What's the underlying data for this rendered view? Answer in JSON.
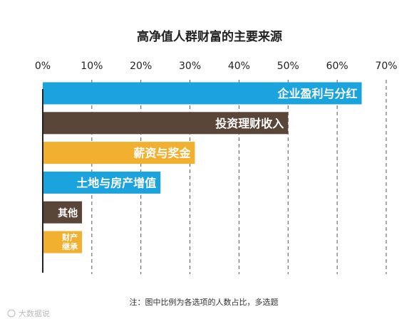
{
  "chart_data": {
    "type": "bar",
    "orientation": "horizontal",
    "title": "高净值人群财富的主要来源",
    "xlabel": "",
    "ylabel": "",
    "xlim": [
      0,
      70
    ],
    "x_ticks": [
      "0%",
      "10%",
      "20%",
      "30%",
      "40%",
      "50%",
      "60%",
      "70%"
    ],
    "grid": "vertical dashed",
    "categories": [
      "企业盈利与分红",
      "投资理财收入",
      "薪资与奖金",
      "土地与房产增值",
      "其他",
      "财产继承"
    ],
    "values": [
      65,
      50,
      31,
      24,
      8,
      8
    ],
    "colors": [
      "#1aa3dc",
      "#5a4539",
      "#f1b030",
      "#1aa3dc",
      "#5a4539",
      "#f1b030"
    ],
    "note": "注：图中比例为各选项的人数占比，多选题"
  },
  "watermark": "大数据说"
}
